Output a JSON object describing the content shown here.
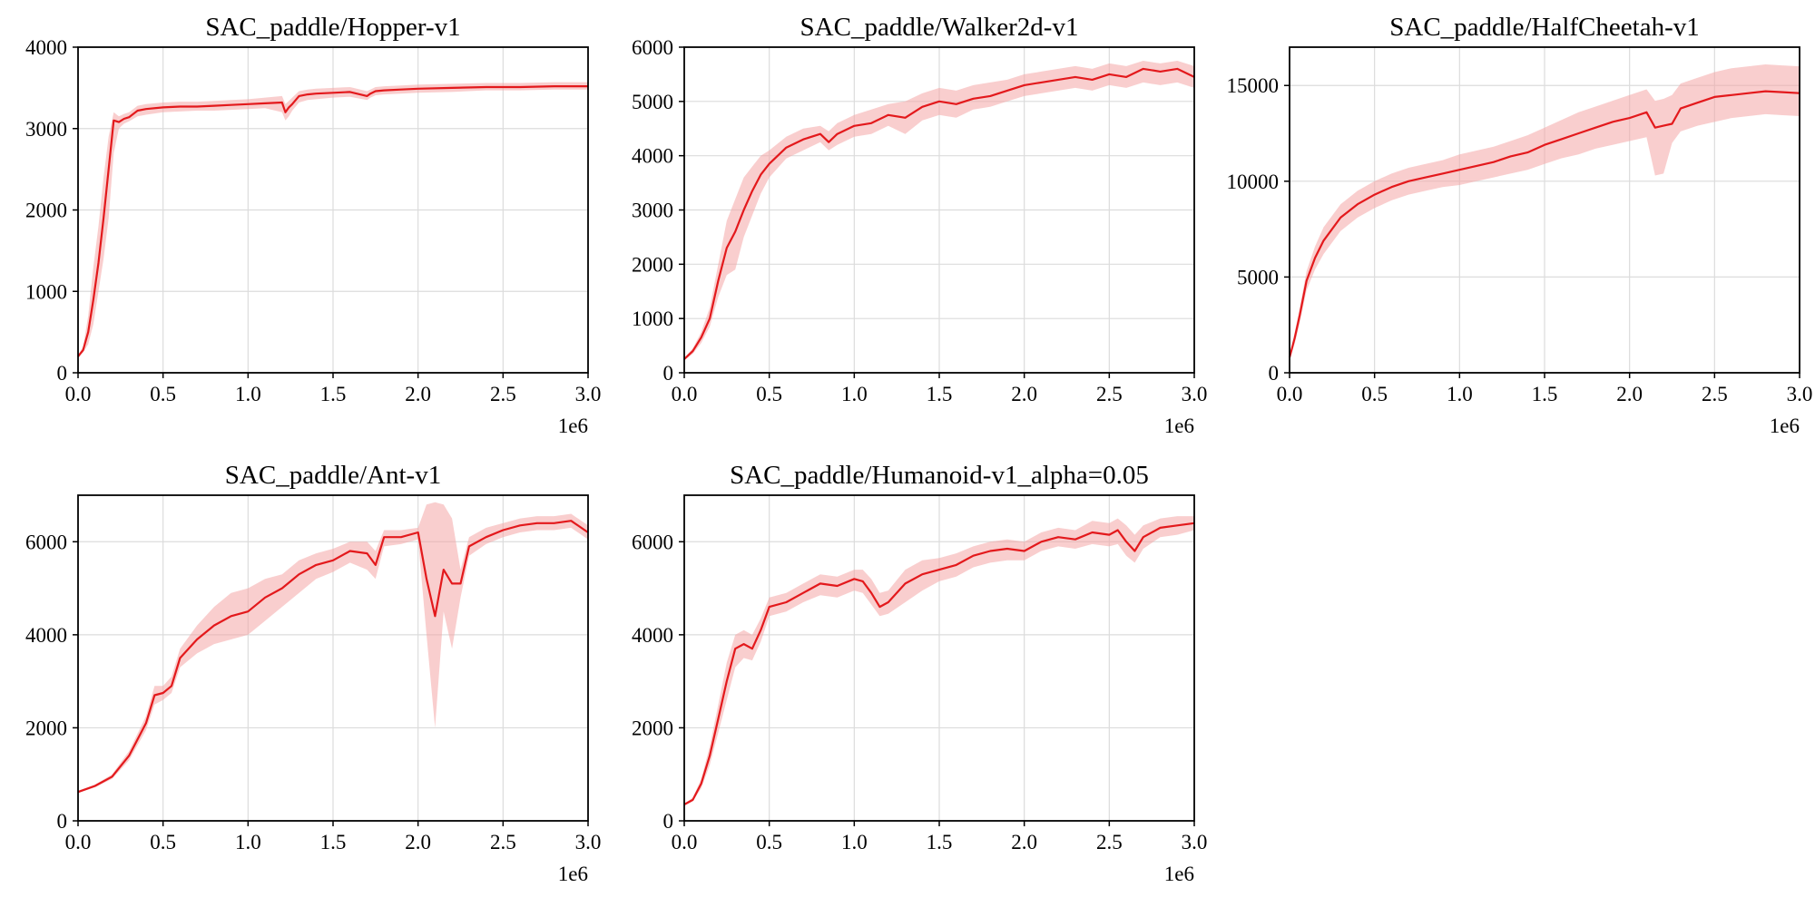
{
  "colors": {
    "line": "#e3191c",
    "band": "#f4a6a6"
  },
  "chart_data": [
    {
      "type": "line",
      "title": "SAC_paddle/Hopper-v1",
      "x_offset_label": "1e6",
      "xlim": [
        0,
        3.0
      ],
      "ylim": [
        0,
        4000
      ],
      "xticks": [
        0.0,
        0.5,
        1.0,
        1.5,
        2.0,
        2.5,
        3.0
      ],
      "xtick_labels": [
        "0.0",
        "0.5",
        "1.0",
        "1.5",
        "2.0",
        "2.5",
        "3.0"
      ],
      "yticks": [
        0,
        1000,
        2000,
        3000,
        4000
      ],
      "ytick_labels": [
        "0",
        "1000",
        "2000",
        "3000",
        "4000"
      ],
      "grid": true,
      "series": [
        {
          "x": [
            0,
            0.03,
            0.06,
            0.09,
            0.12,
            0.15,
            0.18,
            0.21,
            0.24,
            0.27,
            0.3,
            0.35,
            0.4,
            0.5,
            0.6,
            0.7,
            0.8,
            0.9,
            1.0,
            1.1,
            1.2,
            1.22,
            1.24,
            1.26,
            1.3,
            1.35,
            1.4,
            1.5,
            1.6,
            1.7,
            1.72,
            1.75,
            1.8,
            1.9,
            2.0,
            2.2,
            2.4,
            2.6,
            2.8,
            3.0
          ],
          "y": [
            200,
            280,
            500,
            900,
            1350,
            1900,
            2500,
            3100,
            3080,
            3120,
            3140,
            3220,
            3240,
            3260,
            3270,
            3270,
            3280,
            3290,
            3300,
            3310,
            3320,
            3200,
            3260,
            3300,
            3400,
            3420,
            3430,
            3440,
            3450,
            3400,
            3430,
            3460,
            3470,
            3480,
            3490,
            3500,
            3510,
            3510,
            3520,
            3520
          ],
          "lower": [
            200,
            250,
            350,
            600,
            1000,
            1400,
            1900,
            2700,
            3000,
            3060,
            3090,
            3150,
            3170,
            3200,
            3210,
            3220,
            3220,
            3230,
            3240,
            3250,
            3200,
            3100,
            3150,
            3220,
            3320,
            3350,
            3360,
            3380,
            3390,
            3350,
            3380,
            3410,
            3420,
            3430,
            3440,
            3450,
            3470,
            3470,
            3480,
            3480
          ],
          "upper": [
            220,
            320,
            700,
            1300,
            1800,
            2400,
            2900,
            3200,
            3150,
            3180,
            3200,
            3280,
            3300,
            3320,
            3330,
            3330,
            3340,
            3350,
            3360,
            3380,
            3400,
            3300,
            3340,
            3380,
            3460,
            3480,
            3490,
            3500,
            3510,
            3460,
            3480,
            3510,
            3520,
            3530,
            3540,
            3550,
            3560,
            3560,
            3570,
            3570
          ]
        }
      ]
    },
    {
      "type": "line",
      "title": "SAC_paddle/Walker2d-v1",
      "x_offset_label": "1e6",
      "xlim": [
        0,
        3.0
      ],
      "ylim": [
        0,
        6000
      ],
      "xticks": [
        0.0,
        0.5,
        1.0,
        1.5,
        2.0,
        2.5,
        3.0
      ],
      "xtick_labels": [
        "0.0",
        "0.5",
        "1.0",
        "1.5",
        "2.0",
        "2.5",
        "3.0"
      ],
      "yticks": [
        0,
        1000,
        2000,
        3000,
        4000,
        5000,
        6000
      ],
      "ytick_labels": [
        "0",
        "1000",
        "2000",
        "3000",
        "4000",
        "5000",
        "6000"
      ],
      "grid": true,
      "series": [
        {
          "x": [
            0,
            0.05,
            0.1,
            0.15,
            0.2,
            0.25,
            0.3,
            0.35,
            0.4,
            0.45,
            0.5,
            0.6,
            0.7,
            0.8,
            0.85,
            0.9,
            1.0,
            1.1,
            1.2,
            1.3,
            1.4,
            1.5,
            1.6,
            1.7,
            1.8,
            1.9,
            2.0,
            2.1,
            2.2,
            2.3,
            2.4,
            2.5,
            2.6,
            2.7,
            2.8,
            2.9,
            3.0
          ],
          "y": [
            250,
            400,
            650,
            1000,
            1700,
            2300,
            2600,
            3000,
            3350,
            3650,
            3850,
            4150,
            4300,
            4400,
            4250,
            4400,
            4550,
            4600,
            4750,
            4700,
            4900,
            5000,
            4950,
            5050,
            5100,
            5200,
            5300,
            5350,
            5400,
            5450,
            5400,
            5500,
            5450,
            5600,
            5550,
            5600,
            5450
          ],
          "lower": [
            230,
            350,
            550,
            850,
            1400,
            1800,
            1900,
            2500,
            2900,
            3300,
            3600,
            3950,
            4100,
            4250,
            4100,
            4200,
            4350,
            4400,
            4550,
            4400,
            4650,
            4750,
            4700,
            4850,
            4900,
            5000,
            5100,
            5150,
            5200,
            5250,
            5200,
            5300,
            5250,
            5350,
            5300,
            5350,
            5250
          ],
          "upper": [
            280,
            450,
            750,
            1200,
            2000,
            2800,
            3200,
            3600,
            3800,
            4000,
            4100,
            4350,
            4500,
            4550,
            4450,
            4600,
            4750,
            4850,
            4950,
            5000,
            5150,
            5250,
            5200,
            5300,
            5350,
            5400,
            5500,
            5550,
            5600,
            5650,
            5600,
            5700,
            5650,
            5750,
            5700,
            5750,
            5650
          ]
        }
      ]
    },
    {
      "type": "line",
      "title": "SAC_paddle/HalfCheetah-v1",
      "x_offset_label": "1e6",
      "xlim": [
        0,
        3.0
      ],
      "ylim": [
        0,
        17000
      ],
      "xticks": [
        0.0,
        0.5,
        1.0,
        1.5,
        2.0,
        2.5,
        3.0
      ],
      "xtick_labels": [
        "0.0",
        "0.5",
        "1.0",
        "1.5",
        "2.0",
        "2.5",
        "3.0"
      ],
      "yticks": [
        0,
        5000,
        10000,
        15000
      ],
      "ytick_labels": [
        "0",
        "5000",
        "10000",
        "15000"
      ],
      "grid": true,
      "series": [
        {
          "x": [
            0,
            0.03,
            0.06,
            0.1,
            0.15,
            0.2,
            0.3,
            0.4,
            0.5,
            0.6,
            0.7,
            0.8,
            0.9,
            1.0,
            1.1,
            1.2,
            1.3,
            1.4,
            1.5,
            1.6,
            1.7,
            1.8,
            1.9,
            2.0,
            2.1,
            2.15,
            2.2,
            2.25,
            2.3,
            2.4,
            2.5,
            2.6,
            2.7,
            2.8,
            2.9,
            3.0
          ],
          "y": [
            800,
            1800,
            3000,
            4800,
            6000,
            6900,
            8100,
            8800,
            9300,
            9700,
            10000,
            10200,
            10400,
            10600,
            10800,
            11000,
            11300,
            11500,
            11900,
            12200,
            12500,
            12800,
            13100,
            13300,
            13600,
            12800,
            12900,
            13000,
            13800,
            14100,
            14400,
            14500,
            14600,
            14700,
            14650,
            14600
          ],
          "lower": [
            700,
            1500,
            2600,
            4300,
            5400,
            6200,
            7400,
            8100,
            8600,
            9000,
            9300,
            9500,
            9700,
            9800,
            10000,
            10200,
            10400,
            10600,
            10900,
            11200,
            11400,
            11700,
            11900,
            12100,
            12300,
            10300,
            10400,
            12000,
            12600,
            12900,
            13100,
            13300,
            13400,
            13500,
            13450,
            13400
          ],
          "upper": [
            900,
            2100,
            3400,
            5300,
            6600,
            7600,
            8800,
            9500,
            10000,
            10400,
            10700,
            10900,
            11100,
            11400,
            11600,
            11800,
            12100,
            12400,
            12800,
            13200,
            13600,
            13900,
            14200,
            14500,
            14800,
            14200,
            14300,
            14500,
            15100,
            15400,
            15700,
            15900,
            16000,
            16100,
            16050,
            16000
          ]
        }
      ]
    },
    {
      "type": "line",
      "title": "SAC_paddle/Ant-v1",
      "x_offset_label": "1e6",
      "xlim": [
        0,
        3.0
      ],
      "ylim": [
        0,
        7000
      ],
      "xticks": [
        0.0,
        0.5,
        1.0,
        1.5,
        2.0,
        2.5,
        3.0
      ],
      "xtick_labels": [
        "0.0",
        "0.5",
        "1.0",
        "1.5",
        "2.0",
        "2.5",
        "3.0"
      ],
      "yticks": [
        0,
        2000,
        4000,
        6000
      ],
      "ytick_labels": [
        "0",
        "2000",
        "4000",
        "6000"
      ],
      "grid": true,
      "series": [
        {
          "x": [
            0,
            0.1,
            0.2,
            0.3,
            0.4,
            0.45,
            0.5,
            0.55,
            0.6,
            0.7,
            0.8,
            0.9,
            1.0,
            1.1,
            1.2,
            1.3,
            1.4,
            1.5,
            1.6,
            1.7,
            1.75,
            1.8,
            1.9,
            2.0,
            2.05,
            2.1,
            2.15,
            2.2,
            2.25,
            2.3,
            2.4,
            2.5,
            2.6,
            2.7,
            2.8,
            2.9,
            3.0
          ],
          "y": [
            620,
            750,
            950,
            1400,
            2100,
            2700,
            2750,
            2900,
            3500,
            3900,
            4200,
            4400,
            4500,
            4800,
            5000,
            5300,
            5500,
            5600,
            5800,
            5750,
            5500,
            6100,
            6100,
            6200,
            5200,
            4400,
            5400,
            5100,
            5100,
            5900,
            6100,
            6250,
            6350,
            6400,
            6400,
            6450,
            6200
          ],
          "lower": [
            600,
            720,
            900,
            1300,
            1950,
            2500,
            2600,
            2750,
            3300,
            3600,
            3800,
            3900,
            4000,
            4300,
            4600,
            4900,
            5200,
            5350,
            5550,
            5400,
            5200,
            5900,
            5950,
            6050,
            4000,
            2000,
            4500,
            3700,
            4800,
            5700,
            5950,
            6100,
            6200,
            6250,
            6250,
            6300,
            6050
          ],
          "upper": [
            650,
            780,
            1000,
            1500,
            2250,
            2900,
            2900,
            3100,
            3700,
            4200,
            4600,
            4900,
            5000,
            5200,
            5300,
            5600,
            5750,
            5850,
            6000,
            6000,
            5800,
            6250,
            6250,
            6300,
            6800,
            6850,
            6800,
            6500,
            5400,
            6100,
            6300,
            6400,
            6500,
            6550,
            6550,
            6600,
            6350
          ]
        }
      ]
    },
    {
      "type": "line",
      "title": "SAC_paddle/Humanoid-v1_alpha=0.05",
      "x_offset_label": "1e6",
      "xlim": [
        0,
        3.0
      ],
      "ylim": [
        0,
        7000
      ],
      "xticks": [
        0.0,
        0.5,
        1.0,
        1.5,
        2.0,
        2.5,
        3.0
      ],
      "xtick_labels": [
        "0.0",
        "0.5",
        "1.0",
        "1.5",
        "2.0",
        "2.5",
        "3.0"
      ],
      "yticks": [
        0,
        2000,
        4000,
        6000
      ],
      "ytick_labels": [
        "0",
        "2000",
        "4000",
        "6000"
      ],
      "grid": true,
      "series": [
        {
          "x": [
            0,
            0.05,
            0.1,
            0.15,
            0.2,
            0.25,
            0.3,
            0.35,
            0.4,
            0.45,
            0.5,
            0.6,
            0.7,
            0.8,
            0.9,
            1.0,
            1.05,
            1.1,
            1.15,
            1.2,
            1.3,
            1.4,
            1.5,
            1.6,
            1.7,
            1.8,
            1.9,
            2.0,
            2.1,
            2.2,
            2.3,
            2.4,
            2.5,
            2.55,
            2.6,
            2.65,
            2.7,
            2.8,
            2.9,
            3.0
          ],
          "y": [
            350,
            450,
            800,
            1400,
            2200,
            3000,
            3700,
            3800,
            3700,
            4100,
            4600,
            4700,
            4900,
            5100,
            5050,
            5200,
            5150,
            4900,
            4600,
            4700,
            5100,
            5300,
            5400,
            5500,
            5700,
            5800,
            5850,
            5800,
            6000,
            6100,
            6050,
            6200,
            6150,
            6250,
            6000,
            5800,
            6100,
            6300,
            6350,
            6400
          ],
          "lower": [
            330,
            420,
            700,
            1200,
            1900,
            2600,
            3300,
            3500,
            3450,
            3850,
            4400,
            4500,
            4700,
            4850,
            4800,
            4950,
            4900,
            4650,
            4400,
            4450,
            4700,
            4950,
            5150,
            5250,
            5450,
            5550,
            5600,
            5600,
            5800,
            5900,
            5850,
            5950,
            5900,
            5950,
            5700,
            5550,
            5850,
            6100,
            6150,
            6250
          ],
          "upper": [
            370,
            500,
            900,
            1600,
            2500,
            3400,
            4000,
            4100,
            4000,
            4350,
            4800,
            4900,
            5100,
            5300,
            5250,
            5400,
            5400,
            5200,
            4900,
            4950,
            5400,
            5600,
            5650,
            5750,
            5900,
            6000,
            6050,
            6000,
            6200,
            6300,
            6250,
            6450,
            6400,
            6500,
            6350,
            6150,
            6350,
            6500,
            6550,
            6550
          ]
        }
      ]
    }
  ]
}
